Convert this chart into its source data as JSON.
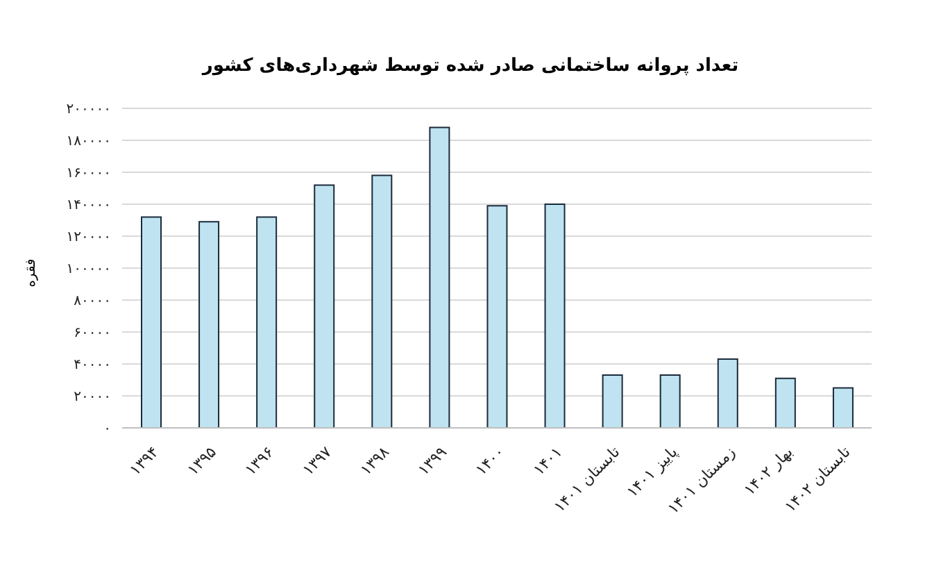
{
  "chart_data": {
    "type": "bar",
    "title": "تعداد پروانه ساختمانی صادر شده توسط شهرداری‌های کشور",
    "ylabel": "فقره",
    "categories": [
      "۱۳۹۴",
      "۱۳۹۵",
      "۱۳۹۶",
      "۱۳۹۷",
      "۱۳۹۸",
      "۱۳۹۹",
      "۱۴۰۰",
      "۱۴۰۱",
      "تابستان ۱۴۰۱",
      "پاییز ۱۴۰۱",
      "زمستان ۱۴۰۱",
      "بهار ۱۴۰۲",
      "تابستان ۱۴۰۲"
    ],
    "values": [
      132000,
      129000,
      132000,
      152000,
      158000,
      188000,
      139000,
      140000,
      33000,
      33000,
      43000,
      31000,
      25000
    ],
    "color": "#bfe3f0",
    "ylim": [
      0,
      200000
    ],
    "yticks": [
      {
        "value": 0,
        "label": "۰"
      },
      {
        "value": 20000,
        "label": "۲۰۰۰۰"
      },
      {
        "value": 40000,
        "label": "۴۰۰۰۰"
      },
      {
        "value": 60000,
        "label": "۶۰۰۰۰"
      },
      {
        "value": 80000,
        "label": "۸۰۰۰۰"
      },
      {
        "value": 100000,
        "label": "۱۰۰۰۰۰"
      },
      {
        "value": 120000,
        "label": "۱۲۰۰۰۰"
      },
      {
        "value": 140000,
        "label": "۱۴۰۰۰۰"
      },
      {
        "value": 160000,
        "label": "۱۶۰۰۰۰"
      },
      {
        "value": 180000,
        "label": "۱۸۰۰۰۰"
      },
      {
        "value": 200000,
        "label": "۲۰۰۰۰۰"
      }
    ],
    "grid": "y"
  }
}
